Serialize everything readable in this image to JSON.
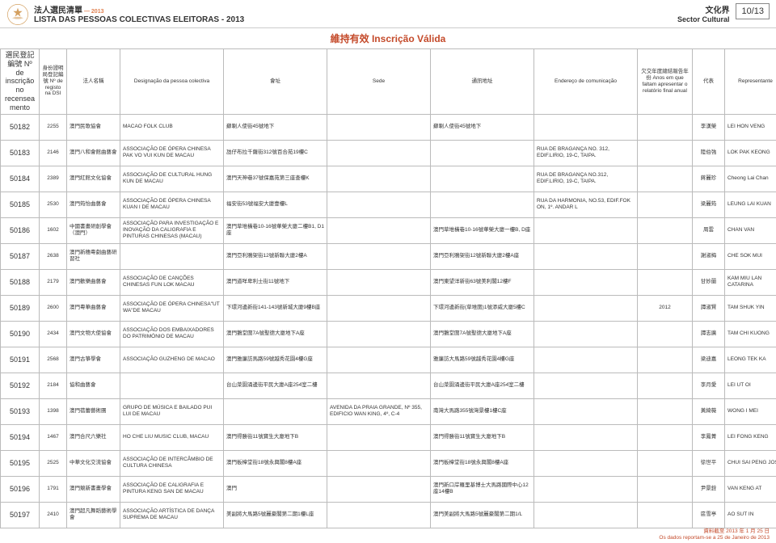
{
  "header": {
    "title_cn": "法人選民清單",
    "year_sep": "—",
    "year": "2013",
    "title_pt": "LISTA DAS PESSOAS COLECTIVAS ELEITORAS - 2013",
    "sector_cn": "文化界",
    "sector_pt": "Sector Cultural",
    "page_no": "10/13",
    "status_title": "維持有效 Inscrição Válida"
  },
  "columns": {
    "num": "選民登記編號\nNº de inscrição no recenseamento",
    "dsi": "身份證明局登記編號\nNº de registo na DSI",
    "name_cn": "法人名稱",
    "name_pt": "Designação da pessoa colectiva",
    "venue": "會址",
    "sede": "Sede",
    "addr_cn": "通訊地址",
    "addr_pt": "Endereço de comunicação",
    "years": "欠交年度總結報告年份\nAnos em que faltam apresentar o relatório final anual",
    "rep_cn": "代表",
    "rep_pt": "Representante"
  },
  "rows": [
    {
      "num": "50182",
      "dsi": "2255",
      "name_cn": "澳門民歌協會",
      "name_pt": "MACAO FOLK CLUB",
      "venue": "蘇喇人使街45號地下",
      "sede": "",
      "addr_cn": "蘇喇人使街45號地下",
      "addr_pt": "",
      "years": "",
      "rep_cn": "李漢榮",
      "rep_pt": "LEI HON VENG"
    },
    {
      "num": "50183",
      "dsi": "2146",
      "name_cn": "澳門八和會館曲藝會",
      "name_pt": "ASSOCIAÇÃO DE ÓPERA CHINESA PAK VO VUI KUN DE MACAU",
      "venue": "氹仔布拉千薩街312號百合苑19樓C",
      "sede": "",
      "addr_cn": "",
      "addr_pt": "RUA DE BRAGANÇA NO. 312, EDIF.LIRIO, 19-C, TAIPA.",
      "years": "",
      "rep_cn": "陸伯強",
      "rep_pt": "LOK PAK KEONG"
    },
    {
      "num": "50184",
      "dsi": "2389",
      "name_cn": "澳門紅館文化協會",
      "name_pt": "ASSOCIAÇÃO DE CULTURAL HUNG KUN DE MACAU",
      "venue": "澳門天神巷37號保嘉苑第三座查樓K",
      "sede": "",
      "addr_cn": "",
      "addr_pt": "RUA DE BRAGANÇA NO.312, EDIF.LIRIO, 19-C, TAIPA.",
      "years": "",
      "rep_cn": "蔣麗珍",
      "rep_pt": "Cheong Lai Chan"
    },
    {
      "num": "50185",
      "dsi": "2530",
      "name_cn": "澳門筠怡曲藝會",
      "name_pt": "ASSOCIAÇÃO DE ÓPERA CHINESA KUAN I DE MACAU",
      "venue": "福安街53號福安大廈壹樓L",
      "sede": "",
      "addr_cn": "",
      "addr_pt": "RUA DA HARMONIA, NO.53, EDIF.FOK ON, 1º. ANDAR L",
      "years": "",
      "rep_cn": "梁麗筠",
      "rep_pt": "LEUNG LAI KUAN"
    },
    {
      "num": "50186",
      "dsi": "1602",
      "name_cn": "中國書畫研創學會（澳門）",
      "name_pt": "ASSOCIAÇÃO PARA INVESTIGAÇÃO E INOVAÇÃO DA CALIGRAFIA E PINTURAS CHINESAS (MACAU)",
      "venue": "澳門草堆橫巷10-16號華榮大廈二樓B1, D1座",
      "sede": "",
      "addr_cn": "澳門草堆橫巷10-16號華榮大廈一樓B, D座",
      "addr_pt": "",
      "years": "",
      "rep_cn": "周雲",
      "rep_pt": "CHAN VAN"
    },
    {
      "num": "50187",
      "dsi": "2638",
      "name_cn": "澳門新穗粵劇曲藝研習社",
      "name_pt": "",
      "venue": "澳門亞利鴉架街12號新聯大廈2樓A",
      "sede": "",
      "addr_cn": "澳門亞利鴉架街12號新聯大廈2樓A座",
      "addr_pt": "",
      "years": "",
      "rep_cn": "謝淑梅",
      "rep_pt": "CHE SOK MUI"
    },
    {
      "num": "50188",
      "dsi": "2179",
      "name_cn": "澳門歡樂曲藝會",
      "name_pt": "ASSOCIAÇÃO DE CANÇÕES CHINESAS FUN LOK MACAU",
      "venue": "澳門道咩卑利士街11號地下",
      "sede": "",
      "addr_cn": "澳門東望洋新街63號美利閣12樓F",
      "addr_pt": "",
      "years": "",
      "rep_cn": "甘妙蘭",
      "rep_pt": "KAM MIU LAN CATARINA"
    },
    {
      "num": "50189",
      "dsi": "2600",
      "name_cn": "澳門粵華曲藝會",
      "name_pt": "ASSOCIAÇÃO DE ÓPERA CHINESA\"UT WA\"DE MACAU",
      "venue": "下環河邊新街141-143號新城大廈9樓B座",
      "sede": "",
      "addr_cn": "下環河邊新街(草堆圍)1號添威大廈5樓C",
      "addr_pt": "",
      "years": "2012",
      "rep_cn": "譚淑賢",
      "rep_pt": "TAM SHUK YIN"
    },
    {
      "num": "50190",
      "dsi": "2434",
      "name_cn": "澳門文物大使協會",
      "name_pt": "ASSOCIAÇÃO DOS EMBAIXADORES DO PATRIMÓNIO DE MACAU",
      "venue": "澳門鵝堂圍7A號聖德大廈地下A座",
      "sede": "",
      "addr_cn": "澳門鵝堂圍7A號聖德大廈地下A座",
      "addr_pt": "",
      "years": "",
      "rep_cn": "譚志廣",
      "rep_pt": "TAM CHI KUONG"
    },
    {
      "num": "50191",
      "dsi": "2568",
      "name_cn": "澳門古箏學會",
      "name_pt": "ASSOCIAÇÃO GUZHENG DE MACAO",
      "venue": "澳門雅廉訪馬路59號越秀花園4樓G座",
      "sede": "",
      "addr_cn": "雅廉訪大馬路59號越秀花園4樓G座",
      "addr_pt": "",
      "years": "",
      "rep_cn": "梁迪嘉",
      "rep_pt": "LEONG TEK KA"
    },
    {
      "num": "50192",
      "dsi": "2184",
      "name_cn": "協和曲藝會",
      "name_pt": "",
      "venue": "台山菜園涌邊街平民大廈A座254室二樓",
      "sede": "",
      "addr_cn": "台山菜園涌邊街平民大廈A座254室二樓",
      "addr_pt": "",
      "years": "",
      "rep_cn": "李月愛",
      "rep_pt": "LEI UT OI"
    },
    {
      "num": "50193",
      "dsi": "1398",
      "name_cn": "澳門蓓蕾藝術團",
      "name_pt": "GRUPO DE MÚSICA E BAILADO PUI LUI DE MACAU",
      "venue": "",
      "sede": "AVENIDA DA PRAIA GRANDE, Nº 355, EDIFICIO WAN KING, 4º, C-4",
      "addr_cn": "南灣大馬路355號灣景樓1樓C座",
      "addr_pt": "",
      "years": "",
      "rep_cn": "黃綺薇",
      "rep_pt": "WONG I MEI"
    },
    {
      "num": "50194",
      "dsi": "1467",
      "name_cn": "澳門合尺六樂社",
      "name_pt": "HO CHE LIU MUSIC CLUB, MACAU",
      "venue": "澳門得勝街11號寶生大廈地下B",
      "sede": "",
      "addr_cn": "澳門得勝街11號寶生大廈地下B",
      "addr_pt": "",
      "years": "",
      "rep_cn": "李鳳菁",
      "rep_pt": "LEI FONG KENG"
    },
    {
      "num": "50195",
      "dsi": "2525",
      "name_cn": "中華文化交流協會",
      "name_pt": "ASSOCIAÇÃO DE INTERCÂMBIO DE CULTURA CHINESA",
      "venue": "澳門板樟堂街18號永興閣8樓A座",
      "sede": "",
      "addr_cn": "澳門板樟堂街18號永興閣8樓A座",
      "addr_pt": "",
      "years": "",
      "rep_cn": "徐世平",
      "rep_pt": "CHUI SAI PENG JOSE"
    },
    {
      "num": "50196",
      "dsi": "1791",
      "name_cn": "澳門競新書畫學會",
      "name_pt": "ASSOCIAÇÃO DE CALIGRAFIA E PINTURA KENG SAN DE MACAU",
      "venue": "澳門",
      "sede": "",
      "addr_cn": "澳門新口岸羅里基博士大馬路國際中心12座14樓B",
      "addr_pt": "",
      "years": "",
      "rep_cn": "尹景銓",
      "rep_pt": "VAN KENG AT"
    },
    {
      "num": "50197",
      "dsi": "2410",
      "name_cn": "澳門超凡舞蹈藝術學會",
      "name_pt": "ASSOCIAÇÃO ARTÍSTICA DE DANÇA SUPREMA DE MACAU",
      "venue": "美副將大馬路5號麗豪閣第二期1樓L座",
      "sede": "",
      "addr_cn": "澳門美副將大馬路5號麗豪閣第二期1/L",
      "addr_pt": "",
      "years": "",
      "rep_cn": "區雪亭",
      "rep_pt": "AO SUT IN"
    }
  ],
  "footer": {
    "line1": "資料截至 2013 年 1 月 25 日",
    "line2": "Os dados reportam-se a 25 de Janeiro de 2013"
  },
  "style": {
    "accent_color": "#c44a2a",
    "year_color": "#e08050",
    "border_color": "#bbb"
  }
}
